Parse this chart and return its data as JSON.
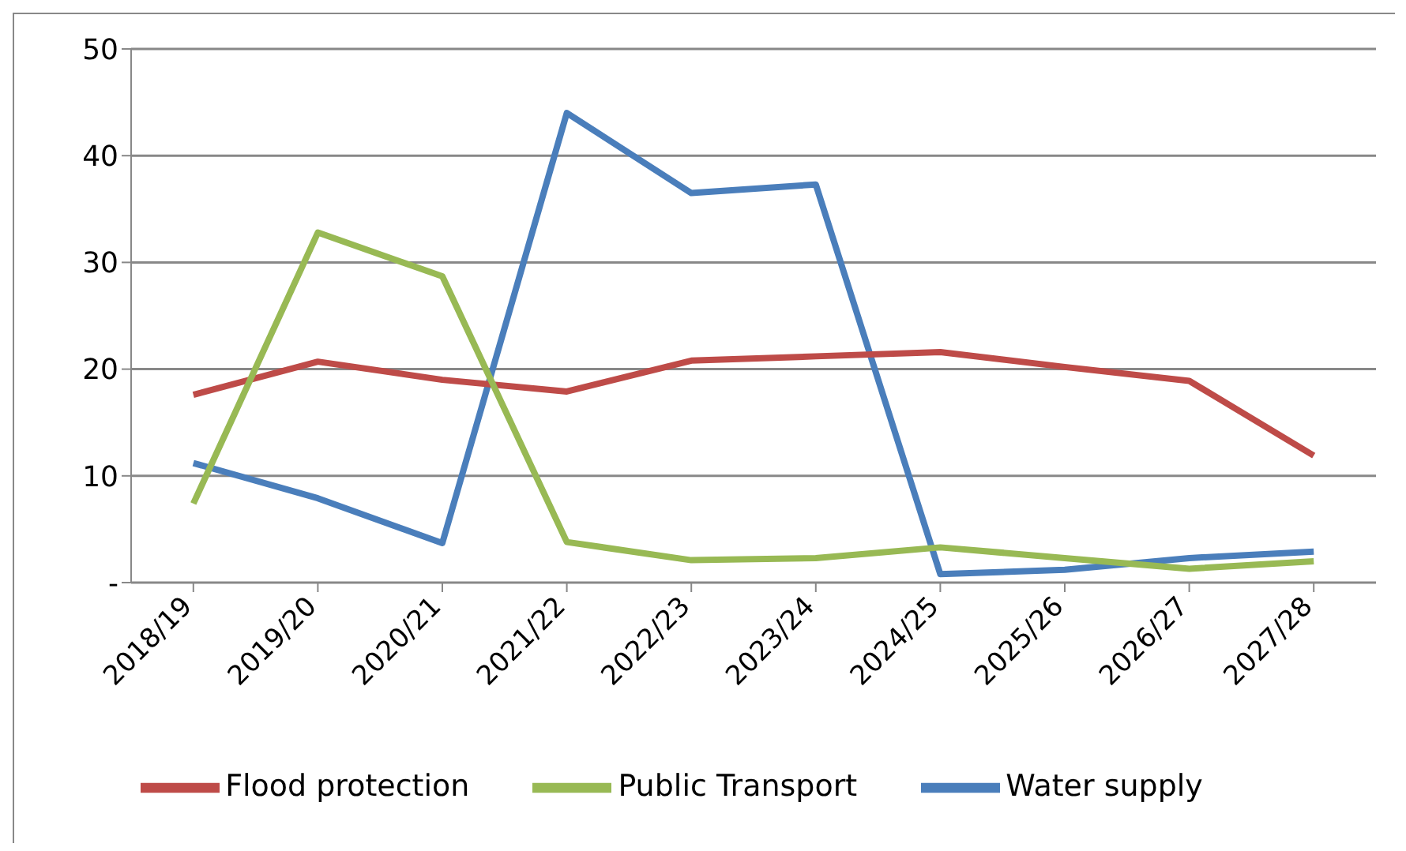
{
  "chart_data": {
    "type": "line",
    "categories": [
      "2018/19",
      "2019/20",
      "2020/21",
      "2021/22",
      "2022/23",
      "2023/24",
      "2024/25",
      "2025/26",
      "2026/27",
      "2027/28"
    ],
    "series": [
      {
        "name": "Water supply",
        "color": "#4a7ebb",
        "values": [
          11.2,
          7.9,
          3.7,
          44,
          36.5,
          37.3,
          0.8,
          1.2,
          2.3,
          2.9
        ]
      },
      {
        "name": "Flood protection",
        "color": "#be4b48",
        "values": [
          17.6,
          20.7,
          19,
          17.9,
          20.8,
          21.2,
          21.6,
          20.2,
          18.9,
          11.9
        ]
      },
      {
        "name": "Public Transport",
        "color": "#98b954",
        "values": [
          7.4,
          32.8,
          28.7,
          3.8,
          2.1,
          2.3,
          3.3,
          2.3,
          1.3,
          2.0
        ]
      }
    ],
    "ylim": [
      0,
      50
    ],
    "yticks": [
      {
        "value": 0,
        "label": "-"
      },
      10,
      20,
      30,
      40,
      50
    ],
    "grid": "y",
    "legend": "bottom",
    "marker": "none",
    "line_style": "solid"
  }
}
